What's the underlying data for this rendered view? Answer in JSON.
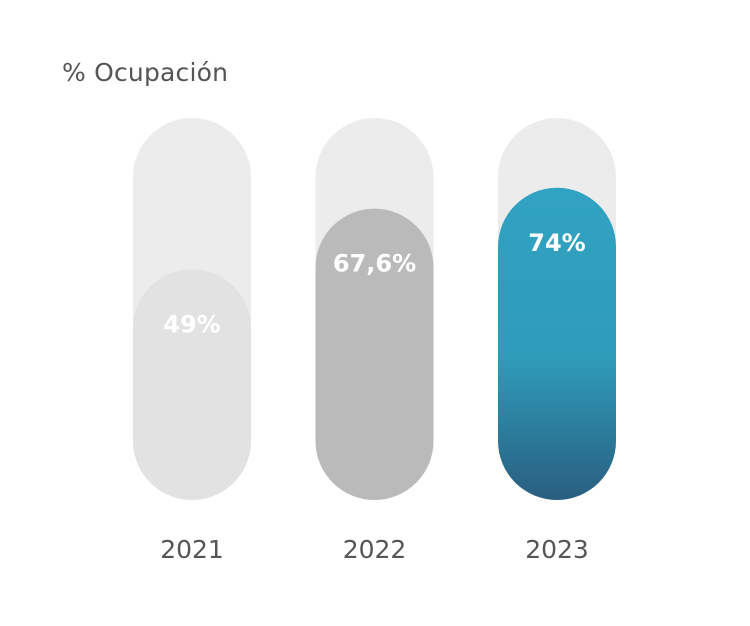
{
  "chart_data": {
    "type": "bar",
    "title": "% Ocupación",
    "categories": [
      "2021",
      "2022",
      "2023"
    ],
    "values": [
      49,
      67.6,
      74
    ],
    "value_labels": [
      "49%",
      "67,6%",
      "74%"
    ],
    "ylim": [
      0,
      100
    ],
    "xlabel": "",
    "ylabel": "",
    "grid": false
  },
  "colors": {
    "track": "#ececec",
    "bar_2021": "#e2e2e2",
    "bar_2022": "#bababa",
    "bar_2023_top": "#31a3c2",
    "bar_2023_mid": "#2e9bb9",
    "bar_2023_bottom": "#2a5e80",
    "value_text": "#ffffff",
    "axis_text": "#555555"
  }
}
